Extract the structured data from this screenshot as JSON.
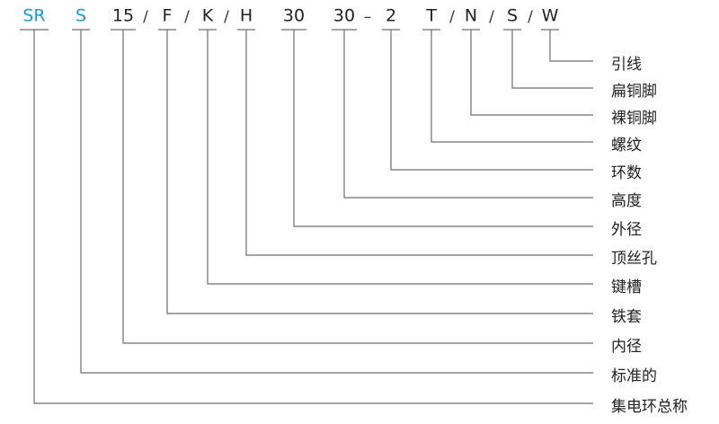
{
  "codes": [
    {
      "code": "SR",
      "label": "集电环总称"
    },
    {
      "code": "S",
      "label": "标准的"
    },
    {
      "code": "15",
      "label": "内径"
    },
    {
      "code": "F",
      "label": "铁套"
    },
    {
      "code": "K",
      "label": "键槽"
    },
    {
      "code": "H",
      "label": "顶丝孔"
    },
    {
      "code": "30",
      "label": "外径"
    },
    {
      "code": "30",
      "label": "高度"
    },
    {
      "code": "2",
      "label": "环数"
    },
    {
      "code": "T",
      "label": "螺纹"
    },
    {
      "code": "N",
      "label": "裸铜脚"
    },
    {
      "code": "S",
      "label": "扁铜脚"
    },
    {
      "code": "W",
      "label": "引线"
    }
  ],
  "separators": [
    "/",
    "/",
    "/",
    "–",
    "/",
    "/",
    "/"
  ]
}
